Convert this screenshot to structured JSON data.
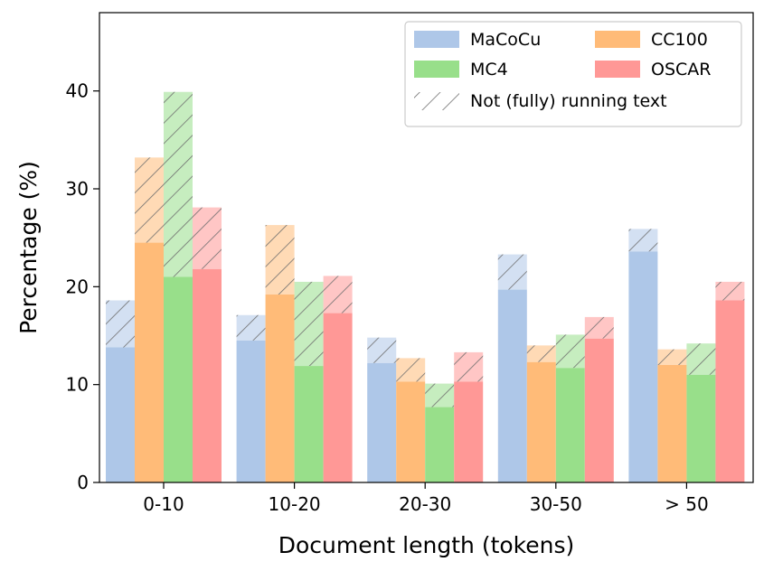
{
  "chart_data": {
    "type": "bar",
    "title": "",
    "xlabel": "Document length (tokens)",
    "ylabel": "Percentage (%)",
    "ylim": [
      0,
      48
    ],
    "yticks": [
      0,
      10,
      20,
      30,
      40
    ],
    "grid": false,
    "categories": [
      "0-10",
      "10-20",
      "20-30",
      "30-50",
      "> 50"
    ],
    "series": [
      {
        "name": "MaCoCu",
        "color": "#aec7e8",
        "running": [
          13.8,
          14.5,
          12.2,
          19.7,
          23.6
        ],
        "total": [
          18.6,
          17.1,
          14.8,
          23.3,
          25.9
        ]
      },
      {
        "name": "CC100",
        "color": "#ffbb78",
        "running": [
          24.5,
          19.2,
          10.3,
          12.3,
          12.0
        ],
        "total": [
          33.2,
          26.3,
          12.7,
          14.0,
          13.6
        ]
      },
      {
        "name": "MC4",
        "color": "#98df8a",
        "running": [
          21.0,
          11.9,
          7.7,
          11.7,
          11.0
        ],
        "total": [
          39.9,
          20.5,
          10.1,
          15.1,
          14.2
        ]
      },
      {
        "name": "OSCAR",
        "color": "#ff9896",
        "running": [
          21.8,
          17.3,
          10.3,
          14.7,
          18.6
        ],
        "total": [
          28.1,
          21.1,
          13.3,
          16.9,
          20.5
        ]
      }
    ],
    "hatch_legend_label": "Not (fully) running text",
    "legend_position": "top-right"
  }
}
